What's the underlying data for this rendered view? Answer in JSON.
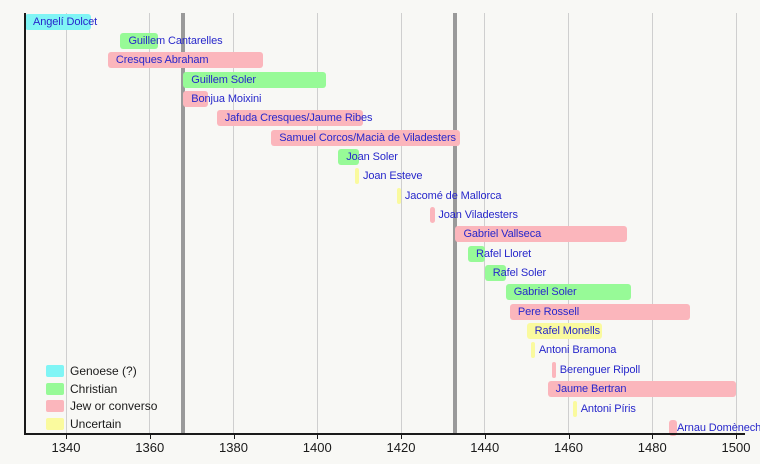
{
  "chart_data": {
    "type": "bar",
    "subtype": "horizontal-timeline",
    "x_axis": {
      "min": 1330,
      "max": 1502,
      "ticks": [
        1340,
        1360,
        1380,
        1400,
        1420,
        1440,
        1460,
        1480,
        1500
      ],
      "gridlines": true
    },
    "era_lines": {
      "years": [
        1368,
        1433
      ],
      "color": "#9a9a9a"
    },
    "colors": {
      "genoese": "#80f5f5",
      "christian": "#97fa97",
      "jew_or_converso": "#fbb6bc",
      "uncertain": "#fafa9e"
    },
    "label_color": "#2727cb",
    "legend": {
      "position": "bottom-left",
      "items": [
        {
          "label": "Genoese (?)",
          "category": "genoese"
        },
        {
          "label": "Christian",
          "category": "christian"
        },
        {
          "label": "Jew or converso",
          "category": "jew_or_converso"
        },
        {
          "label": "Uncertain",
          "category": "uncertain"
        }
      ]
    },
    "people": [
      {
        "name": "Angelí Dolcet",
        "start": 1330,
        "end": 1346,
        "category": "genoese"
      },
      {
        "name": "Guillem Cantarelles",
        "start": 1353,
        "end": 1362,
        "category": "christian"
      },
      {
        "name": "Cresques Abraham",
        "start": 1350,
        "end": 1387,
        "category": "jew_or_converso"
      },
      {
        "name": "Guillem Soler",
        "start": 1368,
        "end": 1402,
        "category": "christian"
      },
      {
        "name": "Bonjua Moixini",
        "start": 1368,
        "end": 1374,
        "category": "jew_or_converso"
      },
      {
        "name": "Jafuda Cresques/Jaume Ribes",
        "start": 1376,
        "end": 1411,
        "category": "jew_or_converso"
      },
      {
        "name": "Samuel Corcos/Macià de Viladesters",
        "start": 1389,
        "end": 1434,
        "category": "jew_or_converso"
      },
      {
        "name": "Joan Soler",
        "start": 1405,
        "end": 1410,
        "category": "christian"
      },
      {
        "name": "Joan Esteve",
        "start": 1409,
        "end": 1410,
        "category": "uncertain"
      },
      {
        "name": "Jacomé de Mallorca",
        "start": 1419,
        "end": 1420,
        "category": "uncertain"
      },
      {
        "name": "Joan Viladesters",
        "start": 1427,
        "end": 1428,
        "category": "jew_or_converso"
      },
      {
        "name": "Gabriel Vallseca",
        "start": 1433,
        "end": 1474,
        "category": "jew_or_converso"
      },
      {
        "name": "Rafel Lloret",
        "start": 1436,
        "end": 1440,
        "category": "christian"
      },
      {
        "name": "Rafel Soler",
        "start": 1440,
        "end": 1445,
        "category": "christian"
      },
      {
        "name": "Gabriel Soler",
        "start": 1445,
        "end": 1475,
        "category": "christian"
      },
      {
        "name": "Pere Rossell",
        "start": 1446,
        "end": 1489,
        "category": "jew_or_converso"
      },
      {
        "name": "Rafel Monells",
        "start": 1450,
        "end": 1468,
        "category": "uncertain"
      },
      {
        "name": "Antoni Bramona",
        "start": 1451,
        "end": 1452,
        "category": "uncertain"
      },
      {
        "name": "Berenguer Ripoll",
        "start": 1456,
        "end": 1457,
        "category": "jew_or_converso"
      },
      {
        "name": "Jaume Bertran",
        "start": 1455,
        "end": 1500,
        "category": "jew_or_converso"
      },
      {
        "name": "Antoni Píris",
        "start": 1461,
        "end": 1462,
        "category": "uncertain"
      },
      {
        "name": "Arnau Domènech",
        "start": 1484,
        "end": 1486,
        "category": "jew_or_converso"
      }
    ]
  }
}
